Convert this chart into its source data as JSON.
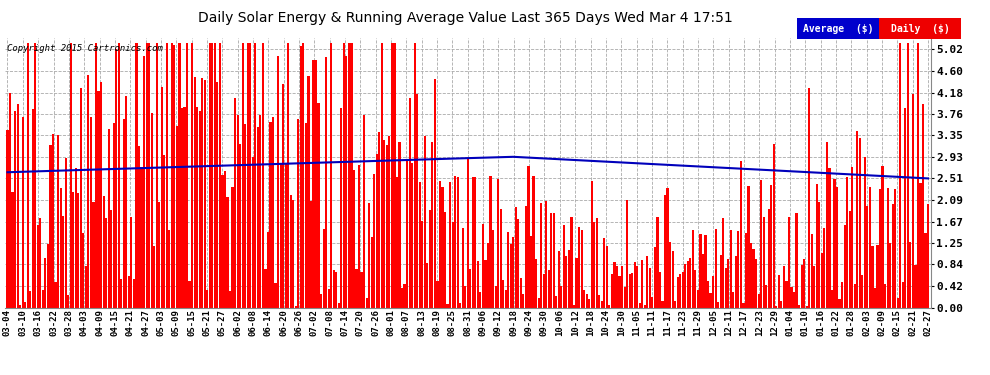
{
  "title": "Daily Solar Energy & Running Average Value Last 365 Days Wed Mar 4 17:51",
  "copyright_text": "Copyright 2015 Cartronics.com",
  "bar_color": "#FF0000",
  "avg_line_color": "#0000BB",
  "background_color": "#FFFFFF",
  "grid_color": "#AAAAAA",
  "ylim": [
    0.0,
    5.25
  ],
  "yticks": [
    0.0,
    0.42,
    0.84,
    1.25,
    1.67,
    2.09,
    2.51,
    2.93,
    3.35,
    3.76,
    4.18,
    4.6,
    5.02
  ],
  "legend_avg_color": "#0000CC",
  "legend_daily_color": "#EE0000",
  "legend_text_avg": "Average  ($)",
  "legend_text_daily": "Daily  ($)",
  "n_days": 365,
  "x_tick_labels": [
    "03-04",
    "03-10",
    "03-16",
    "03-22",
    "03-28",
    "04-03",
    "04-09",
    "04-15",
    "04-21",
    "04-27",
    "05-03",
    "05-09",
    "05-15",
    "05-21",
    "05-27",
    "06-02",
    "06-08",
    "06-14",
    "06-20",
    "06-26",
    "07-02",
    "07-08",
    "07-14",
    "07-20",
    "07-26",
    "08-01",
    "08-07",
    "08-13",
    "08-19",
    "08-25",
    "08-31",
    "09-06",
    "09-12",
    "09-18",
    "09-24",
    "09-30",
    "10-06",
    "10-12",
    "10-18",
    "10-24",
    "10-30",
    "11-05",
    "11-11",
    "11-17",
    "11-23",
    "11-29",
    "12-05",
    "12-11",
    "12-17",
    "12-23",
    "12-29",
    "01-04",
    "01-10",
    "01-16",
    "01-22",
    "01-28",
    "02-03",
    "02-09",
    "02-15",
    "02-21",
    "02-27"
  ]
}
